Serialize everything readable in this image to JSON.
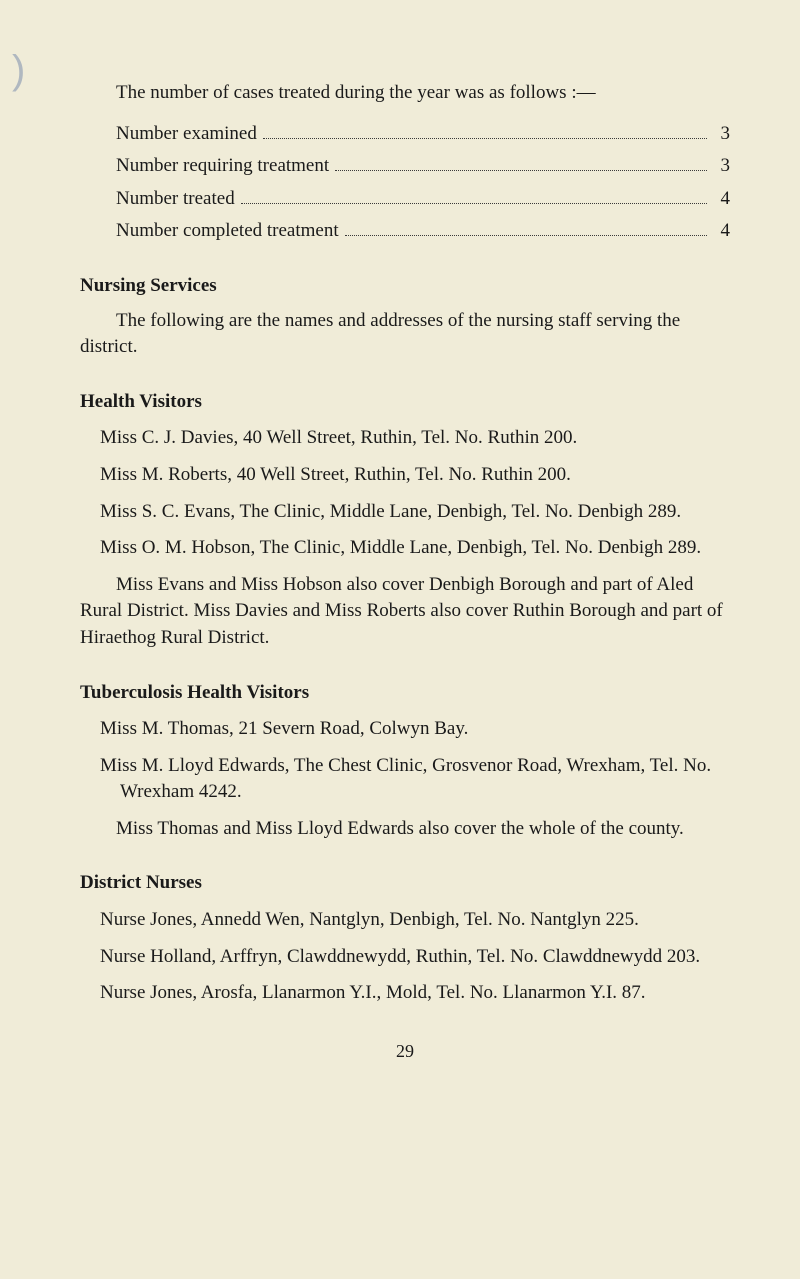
{
  "margin_mark": ")",
  "intro": "The number of cases treated during the year was as follows :—",
  "stats": [
    {
      "label": "Number examined ",
      "value": "3"
    },
    {
      "label": "Number requiring treatment ",
      "value": "3"
    },
    {
      "label": "Number treated ",
      "value": "4"
    },
    {
      "label": "Number completed treatment ",
      "value": "4"
    }
  ],
  "nursing": {
    "head": "Nursing Services",
    "para": "The following are the names and addresses of the nursing staff serving the district."
  },
  "health_visitors": {
    "head": "Health Visitors",
    "items": [
      "Miss C. J. Davies, 40 Well Street, Ruthin, Tel. No. Ruthin 200.",
      "Miss M. Roberts, 40 Well Street, Ruthin, Tel. No. Ruthin 200.",
      "Miss S. C. Evans, The Clinic, Middle Lane, Denbigh, Tel. No. Denbigh 289.",
      "Miss O. M. Hobson, The Clinic, Middle Lane, Denbigh, Tel. No. Denbigh 289."
    ],
    "para": "Miss Evans and Miss Hobson also cover Denbigh Borough and part of Aled Rural District. Miss Davies and Miss Roberts also cover Ruthin Borough and part of Hiraethog Rural District."
  },
  "tb": {
    "head": "Tuberculosis Health Visitors",
    "items": [
      "Miss M. Thomas, 21 Severn Road, Colwyn Bay.",
      "Miss M. Lloyd Edwards, The Chest Clinic, Grosvenor Road, Wrexham, Tel. No. Wrexham 4242."
    ],
    "para": "Miss Thomas and Miss Lloyd Edwards also cover the whole of the county."
  },
  "district": {
    "head": "District Nurses",
    "items": [
      "Nurse Jones, Annedd Wen, Nantglyn, Denbigh, Tel. No. Nantglyn 225.",
      "Nurse Holland, Arffryn, Clawddnewydd, Ruthin, Tel. No. Clawddnewydd 203.",
      "Nurse Jones, Arosfa, Llanarmon Y.I., Mold, Tel. No. Llanarmon Y.I. 87."
    ]
  },
  "page_num": "29"
}
